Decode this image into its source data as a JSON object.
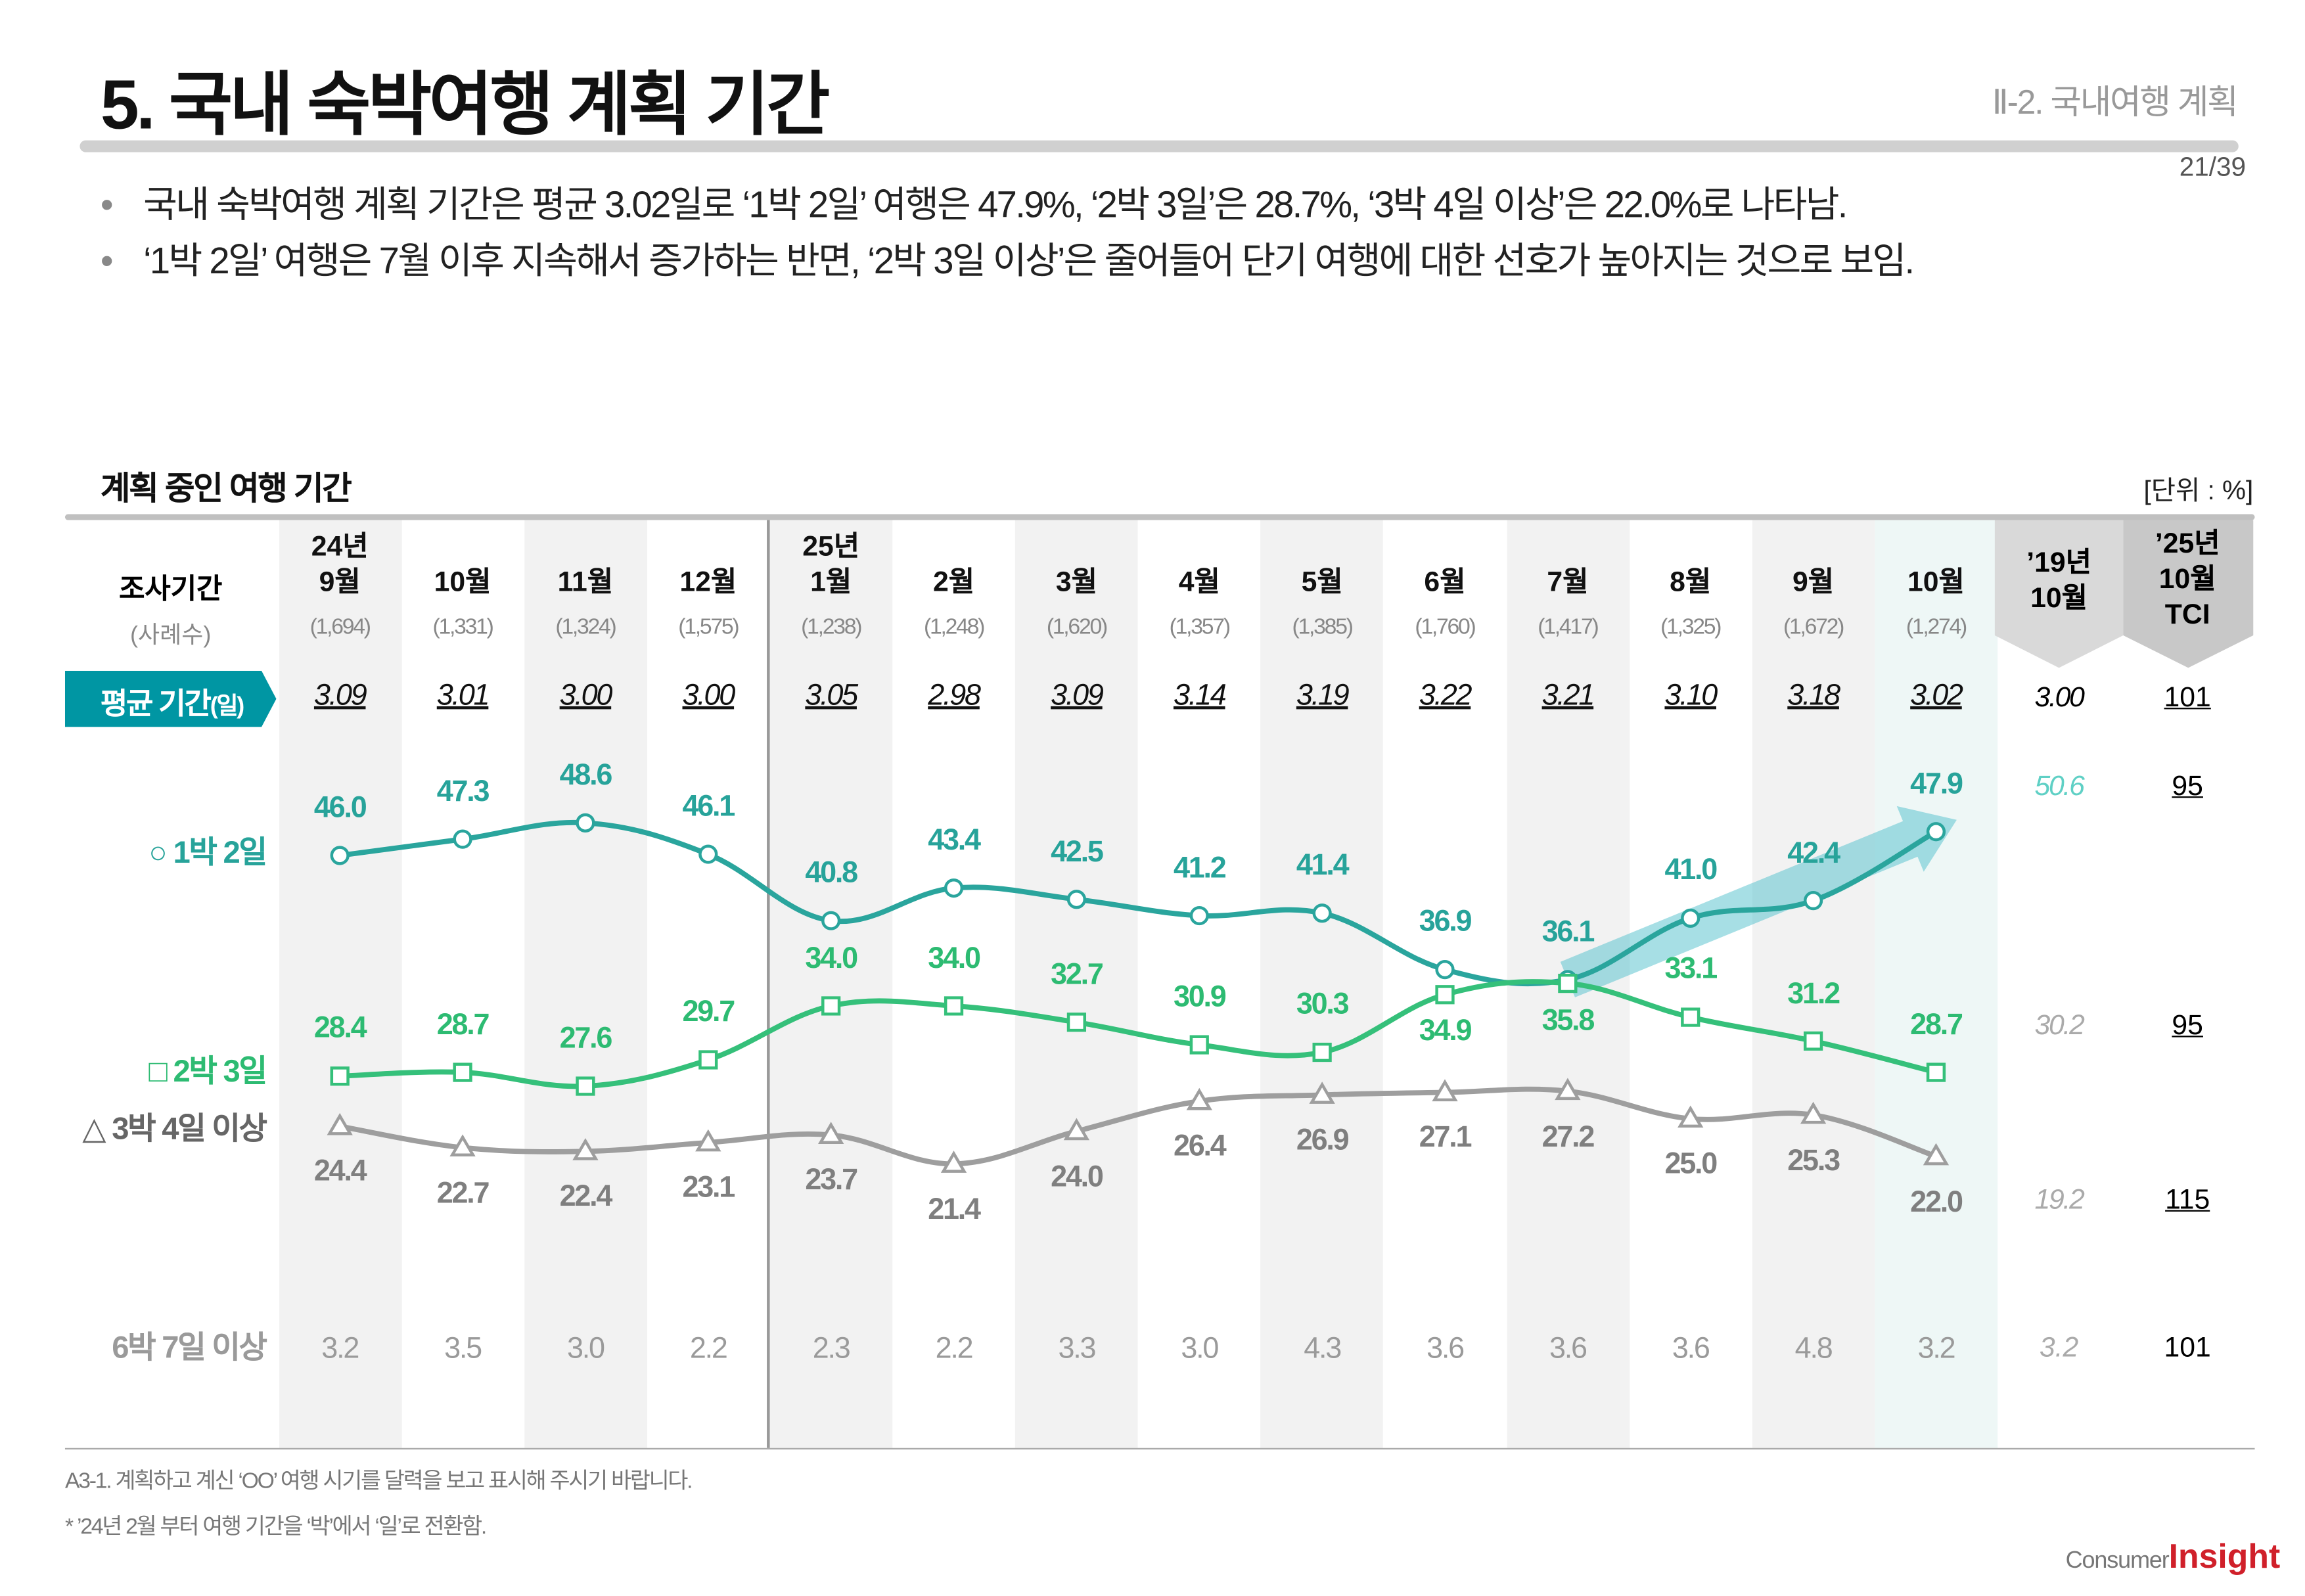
{
  "header": {
    "title": "5. 국내 숙박여행 계획 기간",
    "section": "Ⅱ-2. 국내여행 계획",
    "page": "21/39"
  },
  "bullets": [
    "국내 숙박여행 계획 기간은 평균 3.02일로 ‘1박 2일’ 여행은 47.9%, ‘2박 3일’은 28.7%, ‘3박 4일 이상’은 22.0%로 나타남.",
    "‘1박 2일’ 여행은 7월 이후 지속해서 증가하는 반면, ‘2박 3일 이상’은 줄어들어 단기 여행에 대한 선호가 높아지는 것으로 보임."
  ],
  "chart_data": {
    "type": "line",
    "title": "계획 중인 여행 기간",
    "unit": "[단위 : %]",
    "period_label": "조사기간",
    "n_label": "(사례수)",
    "categories": [
      {
        "year": "24년",
        "month": "9월"
      },
      {
        "year": "",
        "month": "10월"
      },
      {
        "year": "",
        "month": "11월"
      },
      {
        "year": "",
        "month": "12월"
      },
      {
        "year": "25년",
        "month": "1월"
      },
      {
        "year": "",
        "month": "2월"
      },
      {
        "year": "",
        "month": "3월"
      },
      {
        "year": "",
        "month": "4월"
      },
      {
        "year": "",
        "month": "5월"
      },
      {
        "year": "",
        "month": "6월"
      },
      {
        "year": "",
        "month": "7월"
      },
      {
        "year": "",
        "month": "8월"
      },
      {
        "year": "",
        "month": "9월"
      },
      {
        "year": "",
        "month": "10월"
      }
    ],
    "sample_sizes": [
      "(1,694)",
      "(1,331)",
      "(1,324)",
      "(1,575)",
      "(1,238)",
      "(1,248)",
      "(1,620)",
      "(1,357)",
      "(1,385)",
      "(1,760)",
      "(1,417)",
      "(1,325)",
      "(1,672)",
      "(1,274)"
    ],
    "average": {
      "label": "평균 기간",
      "unit_label": "(일)",
      "values": [
        "3.09",
        "3.01",
        "3.00",
        "3.00",
        "3.05",
        "2.98",
        "3.09",
        "3.14",
        "3.19",
        "3.22",
        "3.21",
        "3.10",
        "3.18",
        "3.02"
      ],
      "ref_2019": "3.00",
      "tci": "101"
    },
    "series": [
      {
        "name": "○ 1박 2일",
        "marker": "circle",
        "color": "#2aa59d",
        "label_color": "#27a39a",
        "values": [
          "46.0",
          "47.3",
          "48.6",
          "46.1",
          "40.8",
          "43.4",
          "42.5",
          "41.2",
          "41.4",
          "36.9",
          "36.1",
          "41.0",
          "42.4",
          "47.9"
        ],
        "ref_2019": "50.6",
        "tci": "95"
      },
      {
        "name": "□ 2박 3일",
        "marker": "square",
        "color": "#35c07a",
        "label_color": "#2dbb72",
        "values": [
          "28.4",
          "28.7",
          "27.6",
          "29.7",
          "34.0",
          "34.0",
          "32.7",
          "30.9",
          "30.3",
          "34.9",
          "35.8",
          "33.1",
          "31.2",
          "28.7"
        ],
        "ref_2019": "30.2",
        "tci": "95"
      },
      {
        "name": "△ 3박 4일 이상",
        "marker": "triangle",
        "color": "#9e9e9e",
        "label_color": "#7f7f7f",
        "values": [
          "24.4",
          "22.7",
          "22.4",
          "23.1",
          "23.7",
          "21.4",
          "24.0",
          "26.4",
          "26.9",
          "27.1",
          "27.2",
          "25.0",
          "25.3",
          "22.0"
        ],
        "ref_2019": "19.2",
        "tci": "115"
      }
    ],
    "six_nights": {
      "name": "6박 7일 이상",
      "values": [
        "3.2",
        "3.5",
        "3.0",
        "2.2",
        "2.3",
        "2.2",
        "3.3",
        "3.0",
        "4.3",
        "3.6",
        "3.6",
        "3.6",
        "4.8",
        "3.2"
      ],
      "ref_2019": "3.2",
      "tci": "101"
    },
    "extra_columns": {
      "ref_2019": "’19년\n10월",
      "tci": "’25년\n10월\nTCI"
    },
    "trend_arrow": {
      "from": "7월",
      "to": "10월",
      "color": "#5fc4cf"
    }
  },
  "footnotes": [
    "A3-1. 계획하고 계신 ‘OO’ 여행 시기를 달력을 보고 표시해 주시기 바랍니다.",
    "* ’24년 2월 부터 여행 기간을 ‘박’에서 ‘일’로 전환함."
  ],
  "logo": {
    "consumer": "Consumer",
    "insight": "Insight"
  },
  "colors": {
    "accent": "#0096a3",
    "shade": "#f2f2f2",
    "highlight": "#eef7f6"
  }
}
